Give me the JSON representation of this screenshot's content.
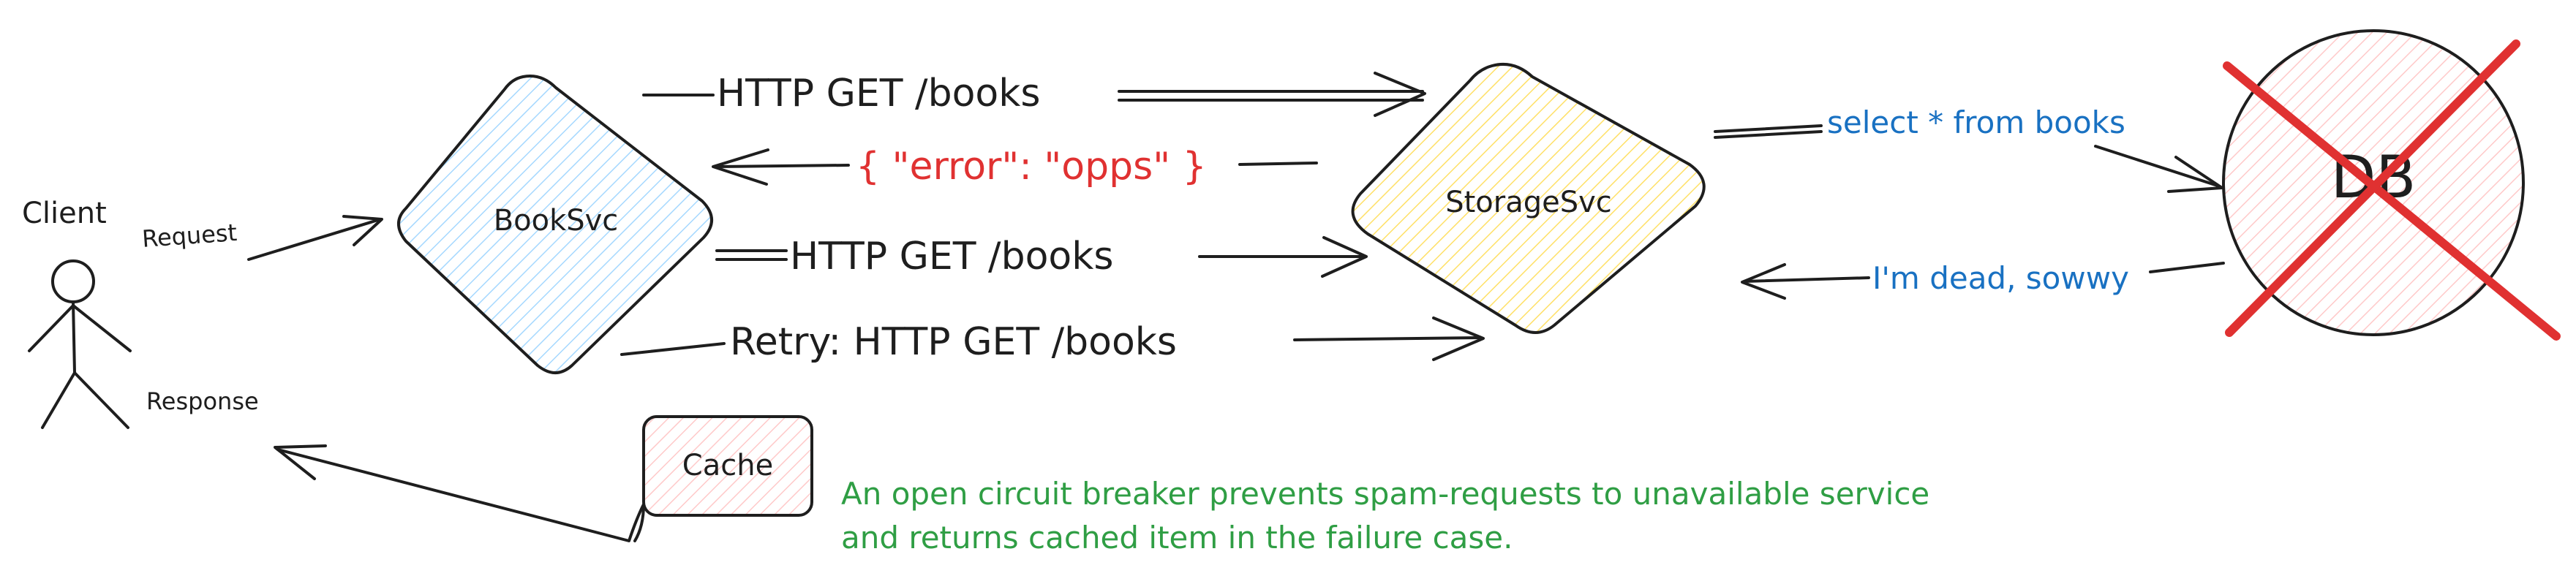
{
  "colors": {
    "ink": "#1e1e1e",
    "booksvc_fill": "#a5d8ff",
    "storagesvc_fill": "#ffec99",
    "db_fill": "#ffc9c9",
    "cache_fill": "#ffc9c9",
    "red_text": "#e03131",
    "blue_text": "#1971c2",
    "green_text": "#2f9e44",
    "cross": "#e03131"
  },
  "actors": {
    "client": "Client"
  },
  "nodes": {
    "booksvc": "BookSvc",
    "storagesvc": "StorageSvc",
    "db": "DB",
    "cache": "Cache"
  },
  "edges": {
    "request": "Request",
    "response": "Response",
    "http_get_1": "HTTP GET /books",
    "error": "{ \"error\": \"opps\" }",
    "http_get_2": "HTTP GET /books",
    "retry": "Retry: HTTP GET /books",
    "select": "select * from books",
    "dead": "I'm dead, sowwy"
  },
  "note": {
    "line1": "An open circuit breaker prevents spam-requests to unavailable service",
    "line2": "and returns cached item in the failure case."
  }
}
